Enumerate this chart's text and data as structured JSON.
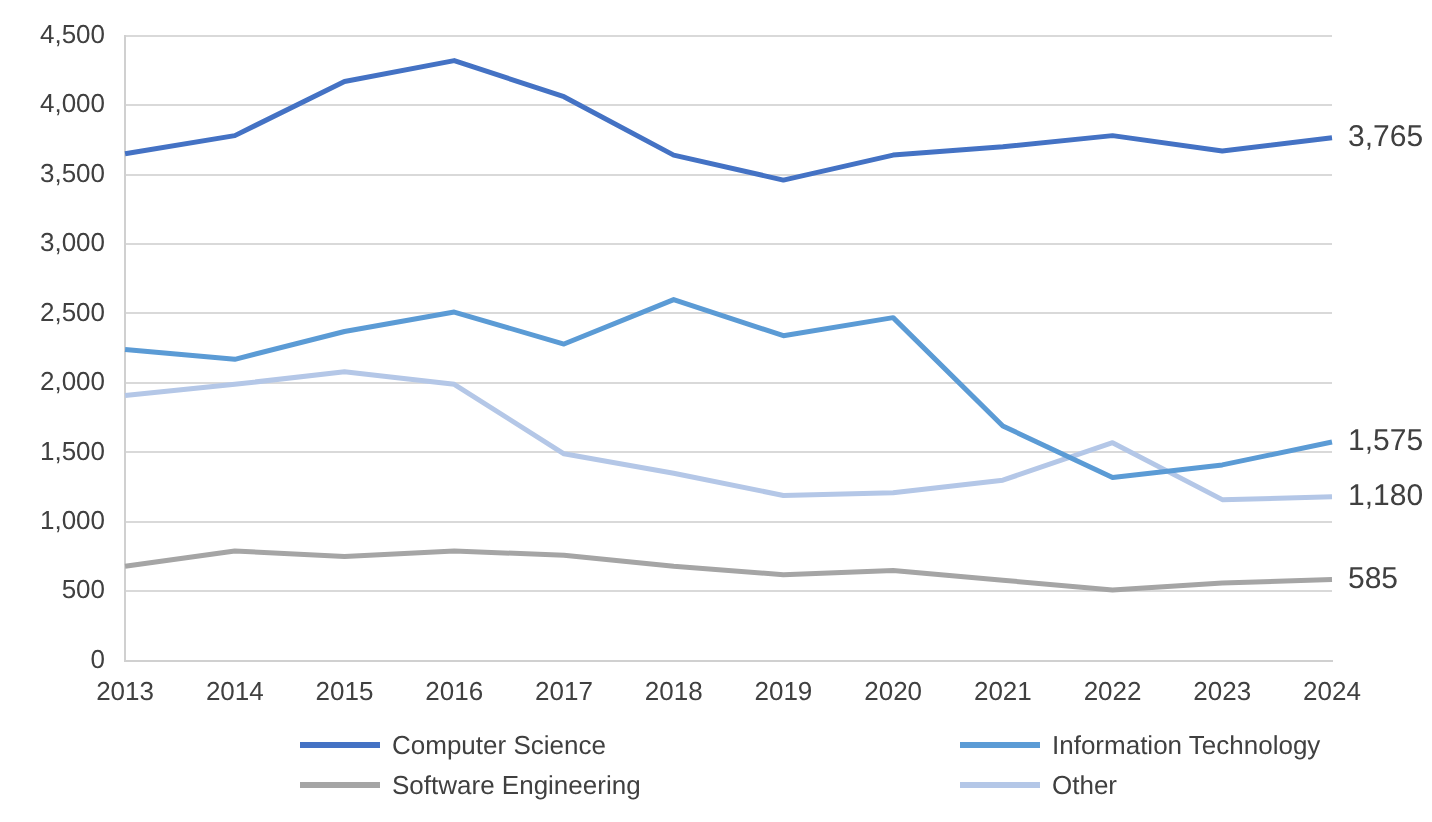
{
  "chart_data": {
    "type": "line",
    "categories": [
      "2013",
      "2014",
      "2015",
      "2016",
      "2017",
      "2018",
      "2019",
      "2020",
      "2021",
      "2022",
      "2023",
      "2024"
    ],
    "series": [
      {
        "name": "Computer Science",
        "color": "#4472c4",
        "values": [
          3650,
          3780,
          4170,
          4320,
          4060,
          3640,
          3460,
          3640,
          3700,
          3780,
          3670,
          3765
        ],
        "value_labels": [
          null,
          null,
          null,
          null,
          null,
          null,
          null,
          null,
          null,
          null,
          null,
          "3,765"
        ]
      },
      {
        "name": "Information Technology",
        "color": "#5b9bd5",
        "values": [
          2240,
          2170,
          2370,
          2510,
          2280,
          2600,
          2340,
          2470,
          1690,
          1320,
          1410,
          1575
        ],
        "value_labels": [
          null,
          null,
          null,
          null,
          null,
          null,
          null,
          null,
          null,
          null,
          null,
          "1,575"
        ]
      },
      {
        "name": "Software Engineering",
        "color": "#a5a5a5",
        "values": [
          680,
          790,
          750,
          790,
          760,
          680,
          620,
          650,
          580,
          510,
          560,
          585
        ],
        "value_labels": [
          null,
          null,
          null,
          null,
          null,
          null,
          null,
          null,
          null,
          null,
          null,
          "585"
        ]
      },
      {
        "name": "Other",
        "color": "#b4c7e7",
        "values": [
          1910,
          1990,
          2080,
          1990,
          1490,
          1350,
          1190,
          1210,
          1300,
          1570,
          1160,
          1180
        ],
        "value_labels": [
          null,
          null,
          null,
          null,
          null,
          null,
          null,
          null,
          null,
          null,
          null,
          "1,180"
        ]
      }
    ],
    "ylim": [
      0,
      4500
    ],
    "yticks": [
      {
        "value": 0,
        "label": "0"
      },
      {
        "value": 500,
        "label": "500"
      },
      {
        "value": 1000,
        "label": "1,000"
      },
      {
        "value": 1500,
        "label": "1,500"
      },
      {
        "value": 2000,
        "label": "2,000"
      },
      {
        "value": 2500,
        "label": "2,500"
      },
      {
        "value": 3000,
        "label": "3,000"
      },
      {
        "value": 3500,
        "label": "3,500"
      },
      {
        "value": 4000,
        "label": "4,000"
      },
      {
        "value": 4500,
        "label": "4,500"
      }
    ],
    "grid": "y",
    "legend": "bottom",
    "marker": "none",
    "line_style": "solid"
  }
}
